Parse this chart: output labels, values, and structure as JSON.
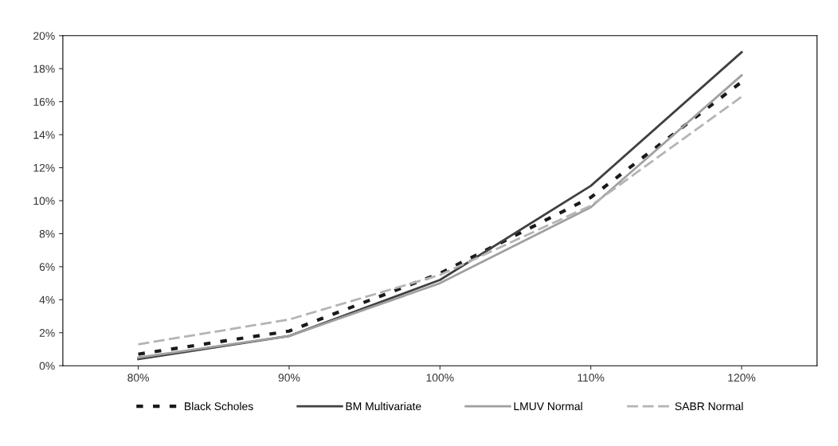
{
  "chart_data": {
    "type": "line",
    "categories": [
      "80%",
      "90%",
      "100%",
      "110%",
      "120%"
    ],
    "series": [
      {
        "name": "Black Scholes",
        "color": "#1a1a1a",
        "line_style": "dotted",
        "values": [
          0.7,
          2.1,
          5.6,
          10.2,
          17.2
        ]
      },
      {
        "name": "BM Multivariate",
        "color": "#404040",
        "line_style": "solid",
        "values": [
          0.4,
          1.8,
          5.2,
          10.9,
          19.0
        ]
      },
      {
        "name": "LMUV Normal",
        "color": "#a0a0a0",
        "line_style": "solid",
        "values": [
          0.5,
          1.8,
          5.0,
          9.6,
          17.6
        ]
      },
      {
        "name": "SABR Normal",
        "color": "#b4b4b4",
        "line_style": "dashed",
        "values": [
          1.3,
          2.8,
          5.5,
          9.7,
          16.3
        ]
      }
    ],
    "ylim": [
      0,
      20
    ],
    "yticks": [
      {
        "value": 0,
        "label": "0%"
      },
      {
        "value": 2,
        "label": "2%"
      },
      {
        "value": 4,
        "label": "4%"
      },
      {
        "value": 6,
        "label": "6%"
      },
      {
        "value": 8,
        "label": "8%"
      },
      {
        "value": 10,
        "label": "10%"
      },
      {
        "value": 12,
        "label": "12%"
      },
      {
        "value": 14,
        "label": "14%"
      },
      {
        "value": 16,
        "label": "16%"
      },
      {
        "value": 18,
        "label": "18%"
      },
      {
        "value": 20,
        "label": "20%"
      }
    ],
    "grid": false,
    "legend": "bottom"
  }
}
